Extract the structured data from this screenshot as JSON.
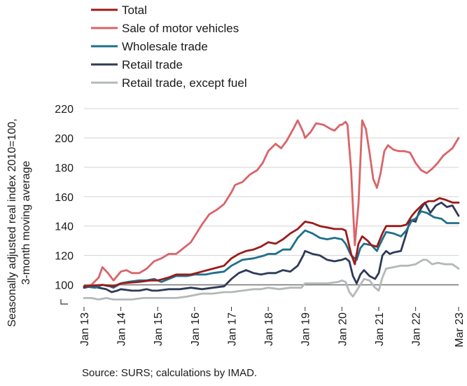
{
  "source": "Source: SURS; calculations by IMAD.",
  "chart_data": {
    "type": "line",
    "ylabel": [
      "Seasonally adjusted real index 2010=100,",
      "3-month moving average"
    ],
    "xlabel": "",
    "ylim": [
      85,
      220
    ],
    "yticks": [
      100,
      120,
      140,
      160,
      180,
      200,
      220
    ],
    "ytick_labels": [
      "100",
      "120",
      "140",
      "160",
      "180",
      "200",
      "220"
    ],
    "xticks": [
      2013,
      2014,
      2015,
      2016,
      2017,
      2018,
      2019,
      2020,
      2021,
      2022,
      2023.1667
    ],
    "xtick_labels": [
      "Jan 13",
      "Jan 14",
      "Jan 15",
      "Jan 16",
      "Jan 17",
      "Jan 18",
      "Jan 19",
      "Jan 20",
      "Jan 21",
      "Jan 22",
      "Mar 23"
    ],
    "reference_line": 100,
    "grid": true,
    "legend": "top-left",
    "series": [
      {
        "name": "Total",
        "color": "#9b1b1b",
        "points": [
          [
            2013.0,
            99
          ],
          [
            2013.5,
            100
          ],
          [
            2013.8,
            99
          ],
          [
            2014.0,
            101
          ],
          [
            2014.5,
            102
          ],
          [
            2014.8,
            103
          ],
          [
            2015.0,
            103
          ],
          [
            2015.3,
            105
          ],
          [
            2015.5,
            107
          ],
          [
            2015.9,
            107
          ],
          [
            2016.2,
            109
          ],
          [
            2016.5,
            111
          ],
          [
            2016.8,
            113
          ],
          [
            2017.0,
            118
          ],
          [
            2017.2,
            121
          ],
          [
            2017.4,
            123
          ],
          [
            2017.6,
            124
          ],
          [
            2017.8,
            126
          ],
          [
            2018.0,
            129
          ],
          [
            2018.2,
            128
          ],
          [
            2018.4,
            131
          ],
          [
            2018.6,
            135
          ],
          [
            2018.8,
            138
          ],
          [
            2019.0,
            143
          ],
          [
            2019.2,
            142
          ],
          [
            2019.4,
            140
          ],
          [
            2019.6,
            139
          ],
          [
            2019.8,
            138
          ],
          [
            2020.0,
            138
          ],
          [
            2020.1,
            137
          ],
          [
            2020.25,
            121
          ],
          [
            2020.35,
            114
          ],
          [
            2020.45,
            128
          ],
          [
            2020.55,
            133
          ],
          [
            2020.7,
            130
          ],
          [
            2020.8,
            127
          ],
          [
            2020.95,
            126
          ],
          [
            2021.0,
            129
          ],
          [
            2021.1,
            135
          ],
          [
            2021.2,
            140
          ],
          [
            2021.4,
            140
          ],
          [
            2021.6,
            140
          ],
          [
            2021.75,
            141
          ],
          [
            2021.9,
            147
          ],
          [
            2022.0,
            150
          ],
          [
            2022.2,
            155
          ],
          [
            2022.35,
            157
          ],
          [
            2022.5,
            157
          ],
          [
            2022.65,
            159
          ],
          [
            2022.8,
            158
          ],
          [
            2022.9,
            157
          ],
          [
            2023.0,
            156
          ],
          [
            2023.1667,
            156
          ]
        ]
      },
      {
        "name": "Sale of motor vehicles",
        "color": "#d9646a",
        "points": [
          [
            2013.0,
            99
          ],
          [
            2013.2,
            100
          ],
          [
            2013.4,
            105
          ],
          [
            2013.5,
            112
          ],
          [
            2013.65,
            108
          ],
          [
            2013.8,
            103
          ],
          [
            2014.0,
            109
          ],
          [
            2014.15,
            110
          ],
          [
            2014.3,
            108
          ],
          [
            2014.5,
            108
          ],
          [
            2014.7,
            111
          ],
          [
            2014.9,
            116
          ],
          [
            2015.1,
            118
          ],
          [
            2015.3,
            121
          ],
          [
            2015.5,
            121
          ],
          [
            2015.7,
            125
          ],
          [
            2015.9,
            129
          ],
          [
            2016.0,
            133
          ],
          [
            2016.2,
            141
          ],
          [
            2016.4,
            148
          ],
          [
            2016.6,
            151
          ],
          [
            2016.8,
            155
          ],
          [
            2017.0,
            163
          ],
          [
            2017.1,
            168
          ],
          [
            2017.3,
            170
          ],
          [
            2017.5,
            175
          ],
          [
            2017.7,
            178
          ],
          [
            2017.85,
            183
          ],
          [
            2018.0,
            191
          ],
          [
            2018.2,
            196
          ],
          [
            2018.35,
            193
          ],
          [
            2018.5,
            198
          ],
          [
            2018.7,
            207
          ],
          [
            2018.8,
            212
          ],
          [
            2018.95,
            204
          ],
          [
            2019.0,
            200
          ],
          [
            2019.15,
            204
          ],
          [
            2019.3,
            210
          ],
          [
            2019.5,
            209
          ],
          [
            2019.7,
            206
          ],
          [
            2019.8,
            205
          ],
          [
            2019.95,
            209
          ],
          [
            2020.0,
            209
          ],
          [
            2020.1,
            211
          ],
          [
            2020.15,
            209
          ],
          [
            2020.25,
            178
          ],
          [
            2020.35,
            127
          ],
          [
            2020.45,
            155
          ],
          [
            2020.55,
            212
          ],
          [
            2020.65,
            206
          ],
          [
            2020.75,
            190
          ],
          [
            2020.85,
            172
          ],
          [
            2020.95,
            166
          ],
          [
            2021.05,
            176
          ],
          [
            2021.15,
            191
          ],
          [
            2021.25,
            195
          ],
          [
            2021.4,
            192
          ],
          [
            2021.55,
            191
          ],
          [
            2021.7,
            191
          ],
          [
            2021.85,
            190
          ],
          [
            2022.0,
            183
          ],
          [
            2022.15,
            178
          ],
          [
            2022.3,
            176
          ],
          [
            2022.45,
            179
          ],
          [
            2022.6,
            183
          ],
          [
            2022.75,
            188
          ],
          [
            2022.9,
            191
          ],
          [
            2023.0,
            193
          ],
          [
            2023.1667,
            200
          ]
        ]
      },
      {
        "name": "Wholesale trade",
        "color": "#1f6f8b",
        "points": [
          [
            2013.0,
            99
          ],
          [
            2013.3,
            98
          ],
          [
            2013.5,
            100
          ],
          [
            2013.7,
            99
          ],
          [
            2013.8,
            98
          ],
          [
            2014.0,
            101
          ],
          [
            2014.2,
            102
          ],
          [
            2014.5,
            103
          ],
          [
            2014.7,
            103
          ],
          [
            2014.9,
            104
          ],
          [
            2015.1,
            102
          ],
          [
            2015.3,
            104
          ],
          [
            2015.5,
            106
          ],
          [
            2015.8,
            106
          ],
          [
            2016.0,
            107
          ],
          [
            2016.3,
            107
          ],
          [
            2016.5,
            108
          ],
          [
            2016.8,
            109
          ],
          [
            2017.0,
            113
          ],
          [
            2017.3,
            117
          ],
          [
            2017.6,
            118
          ],
          [
            2017.9,
            120
          ],
          [
            2018.0,
            121
          ],
          [
            2018.2,
            121
          ],
          [
            2018.4,
            124
          ],
          [
            2018.6,
            124
          ],
          [
            2018.8,
            132
          ],
          [
            2019.0,
            137
          ],
          [
            2019.2,
            135
          ],
          [
            2019.4,
            132
          ],
          [
            2019.6,
            131
          ],
          [
            2019.8,
            132
          ],
          [
            2020.0,
            131
          ],
          [
            2020.1,
            128
          ],
          [
            2020.25,
            120
          ],
          [
            2020.4,
            117
          ],
          [
            2020.5,
            125
          ],
          [
            2020.6,
            128
          ],
          [
            2020.8,
            127
          ],
          [
            2020.95,
            123
          ],
          [
            2021.0,
            126
          ],
          [
            2021.1,
            131
          ],
          [
            2021.2,
            136
          ],
          [
            2021.4,
            135
          ],
          [
            2021.6,
            133
          ],
          [
            2021.75,
            137
          ],
          [
            2021.9,
            144
          ],
          [
            2022.0,
            145
          ],
          [
            2022.15,
            150
          ],
          [
            2022.3,
            149
          ],
          [
            2022.5,
            146
          ],
          [
            2022.7,
            145
          ],
          [
            2022.85,
            142
          ],
          [
            2023.0,
            142
          ],
          [
            2023.1667,
            142
          ]
        ]
      },
      {
        "name": "Retail trade",
        "color": "#2e3a57",
        "points": [
          [
            2013.0,
            98
          ],
          [
            2013.2,
            99
          ],
          [
            2013.4,
            98
          ],
          [
            2013.6,
            97
          ],
          [
            2013.75,
            95
          ],
          [
            2013.9,
            96
          ],
          [
            2014.0,
            97
          ],
          [
            2014.3,
            96
          ],
          [
            2014.5,
            96
          ],
          [
            2014.7,
            97
          ],
          [
            2014.85,
            96
          ],
          [
            2015.0,
            96
          ],
          [
            2015.3,
            97
          ],
          [
            2015.6,
            97
          ],
          [
            2015.9,
            98
          ],
          [
            2016.2,
            97
          ],
          [
            2016.5,
            98
          ],
          [
            2016.8,
            99
          ],
          [
            2017.0,
            104
          ],
          [
            2017.2,
            108
          ],
          [
            2017.4,
            110
          ],
          [
            2017.6,
            108
          ],
          [
            2017.8,
            107
          ],
          [
            2018.0,
            108
          ],
          [
            2018.2,
            108
          ],
          [
            2018.4,
            110
          ],
          [
            2018.6,
            109
          ],
          [
            2018.8,
            113
          ],
          [
            2018.95,
            120
          ],
          [
            2019.0,
            123
          ],
          [
            2019.2,
            121
          ],
          [
            2019.4,
            120
          ],
          [
            2019.6,
            117
          ],
          [
            2019.8,
            116
          ],
          [
            2020.0,
            117
          ],
          [
            2020.1,
            118
          ],
          [
            2020.2,
            116
          ],
          [
            2020.3,
            106
          ],
          [
            2020.4,
            101
          ],
          [
            2020.5,
            107
          ],
          [
            2020.6,
            110
          ],
          [
            2020.75,
            106
          ],
          [
            2020.9,
            104
          ],
          [
            2021.0,
            108
          ],
          [
            2021.1,
            120
          ],
          [
            2021.2,
            123
          ],
          [
            2021.3,
            121
          ],
          [
            2021.4,
            122
          ],
          [
            2021.6,
            123
          ],
          [
            2021.75,
            135
          ],
          [
            2021.85,
            144
          ],
          [
            2022.0,
            143
          ],
          [
            2022.1,
            150
          ],
          [
            2022.25,
            156
          ],
          [
            2022.4,
            149
          ],
          [
            2022.55,
            154
          ],
          [
            2022.7,
            156
          ],
          [
            2022.85,
            153
          ],
          [
            2023.0,
            154
          ],
          [
            2023.1667,
            147
          ]
        ]
      },
      {
        "name": "Retail trade, except fuel",
        "color": "#b3b8ba",
        "points": [
          [
            2013.0,
            91
          ],
          [
            2013.2,
            91
          ],
          [
            2013.4,
            90
          ],
          [
            2013.6,
            91
          ],
          [
            2013.8,
            90
          ],
          [
            2014.0,
            90
          ],
          [
            2014.3,
            90
          ],
          [
            2014.6,
            91
          ],
          [
            2014.9,
            91
          ],
          [
            2015.2,
            91
          ],
          [
            2015.5,
            91
          ],
          [
            2015.8,
            92
          ],
          [
            2016.0,
            93
          ],
          [
            2016.2,
            94
          ],
          [
            2016.5,
            94
          ],
          [
            2016.8,
            95
          ],
          [
            2017.0,
            95
          ],
          [
            2017.3,
            96
          ],
          [
            2017.6,
            97
          ],
          [
            2017.8,
            97
          ],
          [
            2018.0,
            98
          ],
          [
            2018.3,
            97
          ],
          [
            2018.6,
            98
          ],
          [
            2018.9,
            98
          ],
          [
            2019.0,
            101
          ],
          [
            2019.3,
            101
          ],
          [
            2019.6,
            101
          ],
          [
            2019.9,
            102
          ],
          [
            2020.0,
            103
          ],
          [
            2020.1,
            102
          ],
          [
            2020.2,
            95
          ],
          [
            2020.3,
            92
          ],
          [
            2020.45,
            98
          ],
          [
            2020.6,
            104
          ],
          [
            2020.75,
            103
          ],
          [
            2020.9,
            98
          ],
          [
            2021.0,
            96
          ],
          [
            2021.1,
            105
          ],
          [
            2021.2,
            111
          ],
          [
            2021.4,
            112
          ],
          [
            2021.6,
            113
          ],
          [
            2021.8,
            113
          ],
          [
            2022.0,
            114
          ],
          [
            2022.2,
            117
          ],
          [
            2022.3,
            117
          ],
          [
            2022.45,
            114
          ],
          [
            2022.6,
            115
          ],
          [
            2022.8,
            114
          ],
          [
            2023.0,
            114
          ],
          [
            2023.1667,
            111
          ]
        ]
      }
    ]
  }
}
